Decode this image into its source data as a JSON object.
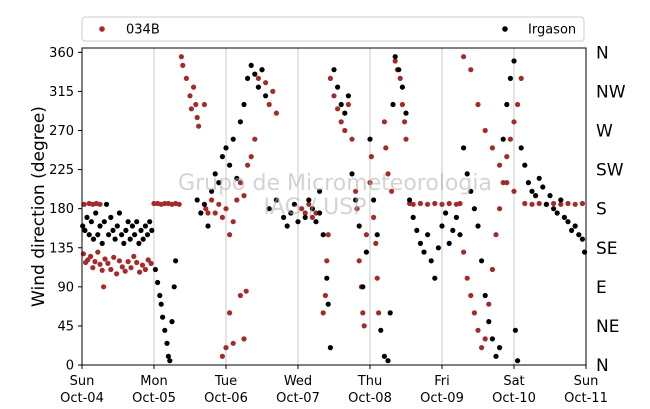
{
  "chart_data": {
    "type": "scatter",
    "ylabel": "Wind direction (degree)",
    "ylim": [
      0,
      365
    ],
    "yticks": [
      0,
      45,
      90,
      135,
      180,
      225,
      270,
      315,
      360
    ],
    "xlim": [
      0,
      7
    ],
    "xticks": [
      {
        "day": 0,
        "line1": "Sun",
        "line2": "Oct-04"
      },
      {
        "day": 1,
        "line1": "Mon",
        "line2": "Oct-05"
      },
      {
        "day": 2,
        "line1": "Tue",
        "line2": "Oct-06"
      },
      {
        "day": 3,
        "line1": "Wed",
        "line2": "Oct-07"
      },
      {
        "day": 4,
        "line1": "Thu",
        "line2": "Oct-08"
      },
      {
        "day": 5,
        "line1": "Fri",
        "line2": "Oct-09"
      },
      {
        "day": 6,
        "line1": "Sat",
        "line2": "Oct-10"
      },
      {
        "day": 7,
        "line1": "Sun",
        "line2": "Oct-11"
      }
    ],
    "compass": [
      "N",
      "NE",
      "E",
      "SE",
      "S",
      "SW",
      "W",
      "NW",
      "N"
    ],
    "grid": "vertical-at-day-ticks",
    "legend_position": "top",
    "series": [
      {
        "name": "034B",
        "color": "#a52a2a",
        "points": [
          [
            0.02,
            128
          ],
          [
            0.05,
            118
          ],
          [
            0.08,
            121
          ],
          [
            0.12,
            125
          ],
          [
            0.15,
            112
          ],
          [
            0.18,
            119
          ],
          [
            0.22,
            130
          ],
          [
            0.25,
            116
          ],
          [
            0.28,
            109
          ],
          [
            0.3,
            90
          ],
          [
            0.32,
            122
          ],
          [
            0.36,
            117
          ],
          [
            0.4,
            110
          ],
          [
            0.44,
            124
          ],
          [
            0.48,
            105
          ],
          [
            0.52,
            120
          ],
          [
            0.56,
            113
          ],
          [
            0.6,
            108
          ],
          [
            0.64,
            119
          ],
          [
            0.68,
            112
          ],
          [
            0.72,
            125
          ],
          [
            0.76,
            118
          ],
          [
            0.8,
            107
          ],
          [
            0.84,
            115
          ],
          [
            0.88,
            110
          ],
          [
            0.92,
            121
          ],
          [
            0.96,
            117
          ],
          [
            0.03,
            185
          ],
          [
            0.1,
            186
          ],
          [
            0.15,
            185
          ],
          [
            0.2,
            186
          ],
          [
            0.25,
            185
          ],
          [
            1.0,
            186
          ],
          [
            1.05,
            186
          ],
          [
            1.1,
            185
          ],
          [
            1.15,
            186
          ],
          [
            1.2,
            186
          ],
          [
            1.25,
            185
          ],
          [
            1.3,
            186
          ],
          [
            1.35,
            185
          ],
          [
            1.38,
            355
          ],
          [
            1.4,
            345
          ],
          [
            1.45,
            330
          ],
          [
            1.5,
            310
          ],
          [
            1.52,
            295
          ],
          [
            1.55,
            320
          ],
          [
            1.58,
            300
          ],
          [
            1.6,
            285
          ],
          [
            1.62,
            275
          ],
          [
            1.7,
            300
          ],
          [
            1.72,
            180
          ],
          [
            1.75,
            175
          ],
          [
            1.8,
            190
          ],
          [
            1.85,
            175
          ],
          [
            1.9,
            185
          ],
          [
            1.95,
            170
          ],
          [
            2.0,
            180
          ],
          [
            2.05,
            150
          ],
          [
            2.1,
            165
          ],
          [
            2.15,
            190
          ],
          [
            2.2,
            210
          ],
          [
            2.25,
            195
          ],
          [
            2.3,
            230
          ],
          [
            2.35,
            240
          ],
          [
            2.4,
            260
          ],
          [
            2.45,
            330
          ],
          [
            2.5,
            340
          ],
          [
            2.55,
            325
          ],
          [
            2.6,
            300
          ],
          [
            2.65,
            315
          ],
          [
            2.7,
            290
          ],
          [
            1.95,
            10
          ],
          [
            2.0,
            20
          ],
          [
            2.05,
            60
          ],
          [
            2.1,
            25
          ],
          [
            2.2,
            80
          ],
          [
            2.25,
            30
          ],
          [
            2.28,
            85
          ],
          [
            3.05,
            180
          ],
          [
            3.1,
            175
          ],
          [
            3.15,
            185
          ],
          [
            3.2,
            170
          ],
          [
            3.25,
            175
          ],
          [
            3.35,
            60
          ],
          [
            3.38,
            80
          ],
          [
            3.4,
            120
          ],
          [
            3.42,
            150
          ],
          [
            3.45,
            330
          ],
          [
            3.5,
            310
          ],
          [
            3.55,
            295
          ],
          [
            3.6,
            280
          ],
          [
            3.65,
            270
          ],
          [
            3.7,
            300
          ],
          [
            3.75,
            260
          ],
          [
            3.8,
            200
          ],
          [
            3.82,
            180
          ],
          [
            3.85,
            120
          ],
          [
            3.88,
            90
          ],
          [
            3.9,
            60
          ],
          [
            3.92,
            45
          ],
          [
            3.95,
            150
          ],
          [
            4.0,
            210
          ],
          [
            4.02,
            240
          ],
          [
            4.05,
            170
          ],
          [
            4.08,
            140
          ],
          [
            4.1,
            100
          ],
          [
            4.12,
            60
          ],
          [
            4.2,
            280
          ],
          [
            4.22,
            250
          ],
          [
            4.25,
            220
          ],
          [
            4.3,
            200
          ],
          [
            4.35,
            350
          ],
          [
            4.38,
            340
          ],
          [
            4.42,
            330
          ],
          [
            4.45,
            300
          ],
          [
            4.48,
            280
          ],
          [
            4.5,
            260
          ],
          [
            4.55,
            186
          ],
          [
            4.6,
            185
          ],
          [
            4.7,
            186
          ],
          [
            4.8,
            185
          ],
          [
            4.9,
            186
          ],
          [
            5.0,
            185
          ],
          [
            5.1,
            186
          ],
          [
            5.2,
            185
          ],
          [
            5.25,
            186
          ],
          [
            5.3,
            130
          ],
          [
            5.35,
            100
          ],
          [
            5.4,
            80
          ],
          [
            5.45,
            60
          ],
          [
            5.5,
            40
          ],
          [
            5.55,
            20
          ],
          [
            5.6,
            30
          ],
          [
            5.65,
            70
          ],
          [
            5.7,
            110
          ],
          [
            5.75,
            150
          ],
          [
            5.8,
            180
          ],
          [
            5.85,
            210
          ],
          [
            5.9,
            240
          ],
          [
            5.95,
            260
          ],
          [
            6.0,
            280
          ],
          [
            6.05,
            300
          ],
          [
            6.1,
            330
          ],
          [
            5.3,
            355
          ],
          [
            5.4,
            340
          ],
          [
            5.5,
            300
          ],
          [
            5.6,
            270
          ],
          [
            5.7,
            250
          ],
          [
            5.8,
            230
          ],
          [
            5.9,
            210
          ],
          [
            6.0,
            200
          ],
          [
            6.15,
            186
          ],
          [
            6.25,
            185
          ],
          [
            6.35,
            186
          ],
          [
            6.45,
            185
          ],
          [
            6.55,
            186
          ],
          [
            6.65,
            185
          ],
          [
            6.75,
            186
          ],
          [
            6.85,
            185
          ],
          [
            6.95,
            186
          ]
        ]
      },
      {
        "name": "Irgason",
        "color": "#000000",
        "points": [
          [
            0.01,
            160
          ],
          [
            0.04,
            155
          ],
          [
            0.07,
            170
          ],
          [
            0.1,
            150
          ],
          [
            0.13,
            165
          ],
          [
            0.16,
            145
          ],
          [
            0.19,
            175
          ],
          [
            0.22,
            150
          ],
          [
            0.25,
            160
          ],
          [
            0.28,
            140
          ],
          [
            0.31,
            165
          ],
          [
            0.34,
            185
          ],
          [
            0.37,
            150
          ],
          [
            0.4,
            170
          ],
          [
            0.43,
            155
          ],
          [
            0.46,
            145
          ],
          [
            0.49,
            160
          ],
          [
            0.52,
            175
          ],
          [
            0.55,
            150
          ],
          [
            0.58,
            140
          ],
          [
            0.61,
            155
          ],
          [
            0.64,
            165
          ],
          [
            0.67,
            145
          ],
          [
            0.7,
            160
          ],
          [
            0.73,
            150
          ],
          [
            0.76,
            165
          ],
          [
            0.79,
            140
          ],
          [
            0.82,
            155
          ],
          [
            0.85,
            145
          ],
          [
            0.88,
            160
          ],
          [
            0.91,
            150
          ],
          [
            0.94,
            165
          ],
          [
            0.97,
            155
          ],
          [
            1.02,
            110
          ],
          [
            1.05,
            95
          ],
          [
            1.08,
            80
          ],
          [
            1.1,
            70
          ],
          [
            1.12,
            55
          ],
          [
            1.15,
            40
          ],
          [
            1.18,
            25
          ],
          [
            1.2,
            10
          ],
          [
            1.22,
            5
          ],
          [
            1.25,
            50
          ],
          [
            1.28,
            90
          ],
          [
            1.3,
            120
          ],
          [
            1.6,
            190
          ],
          [
            1.65,
            175
          ],
          [
            1.7,
            185
          ],
          [
            1.75,
            160
          ],
          [
            1.8,
            200
          ],
          [
            1.85,
            220
          ],
          [
            1.9,
            210
          ],
          [
            1.95,
            240
          ],
          [
            2.0,
            250
          ],
          [
            2.05,
            230
          ],
          [
            2.1,
            260
          ],
          [
            2.15,
            215
          ],
          [
            2.2,
            280
          ],
          [
            2.25,
            300
          ],
          [
            2.3,
            330
          ],
          [
            2.35,
            345
          ],
          [
            2.4,
            335
          ],
          [
            2.45,
            320
          ],
          [
            2.5,
            340
          ],
          [
            2.55,
            310
          ],
          [
            2.6,
            180
          ],
          [
            2.7,
            190
          ],
          [
            2.8,
            170
          ],
          [
            2.85,
            160
          ],
          [
            2.9,
            175
          ],
          [
            2.95,
            185
          ],
          [
            3.0,
            165
          ],
          [
            3.1,
            170
          ],
          [
            3.15,
            190
          ],
          [
            3.2,
            180
          ],
          [
            3.25,
            165
          ],
          [
            3.3,
            175
          ],
          [
            3.3,
            200
          ],
          [
            3.35,
            150
          ],
          [
            3.4,
            100
          ],
          [
            3.42,
            70
          ],
          [
            3.45,
            20
          ],
          [
            3.5,
            340
          ],
          [
            3.55,
            320
          ],
          [
            3.6,
            300
          ],
          [
            3.65,
            290
          ],
          [
            3.7,
            310
          ],
          [
            3.75,
            220
          ],
          [
            3.8,
            190
          ],
          [
            3.85,
            160
          ],
          [
            3.9,
            90
          ],
          [
            3.95,
            130
          ],
          [
            4.0,
            260
          ],
          [
            4.05,
            190
          ],
          [
            4.1,
            150
          ],
          [
            4.15,
            40
          ],
          [
            4.2,
            10
          ],
          [
            4.25,
            5
          ],
          [
            4.28,
            60
          ],
          [
            4.32,
            300
          ],
          [
            4.35,
            355
          ],
          [
            4.4,
            340
          ],
          [
            4.45,
            320
          ],
          [
            4.5,
            290
          ],
          [
            4.55,
            190
          ],
          [
            4.6,
            170
          ],
          [
            4.65,
            155
          ],
          [
            4.7,
            140
          ],
          [
            4.75,
            130
          ],
          [
            4.8,
            150
          ],
          [
            4.85,
            120
          ],
          [
            4.9,
            100
          ],
          [
            4.95,
            135
          ],
          [
            5.0,
            160
          ],
          [
            5.05,
            175
          ],
          [
            5.1,
            140
          ],
          [
            5.15,
            155
          ],
          [
            5.2,
            170
          ],
          [
            5.25,
            150
          ],
          [
            5.3,
            250
          ],
          [
            5.35,
            220
          ],
          [
            5.4,
            200
          ],
          [
            5.45,
            180
          ],
          [
            5.5,
            160
          ],
          [
            5.55,
            120
          ],
          [
            5.6,
            80
          ],
          [
            5.65,
            50
          ],
          [
            5.7,
            30
          ],
          [
            5.75,
            10
          ],
          [
            5.8,
            20
          ],
          [
            5.85,
            260
          ],
          [
            5.9,
            300
          ],
          [
            5.95,
            330
          ],
          [
            6.0,
            350
          ],
          [
            6.02,
            40
          ],
          [
            6.05,
            5
          ],
          [
            6.1,
            250
          ],
          [
            6.15,
            230
          ],
          [
            6.2,
            210
          ],
          [
            6.25,
            200
          ],
          [
            6.3,
            195
          ],
          [
            6.35,
            215
          ],
          [
            6.4,
            205
          ],
          [
            6.45,
            185
          ],
          [
            6.5,
            195
          ],
          [
            6.55,
            180
          ],
          [
            6.6,
            175
          ],
          [
            6.65,
            190
          ],
          [
            6.7,
            170
          ],
          [
            6.75,
            165
          ],
          [
            6.8,
            155
          ],
          [
            6.85,
            160
          ],
          [
            6.9,
            150
          ],
          [
            6.95,
            145
          ],
          [
            6.98,
            130
          ]
        ]
      }
    ]
  },
  "watermark": {
    "line1": "Grupo de Micrometeorologia",
    "line2": "IAG / USP"
  }
}
